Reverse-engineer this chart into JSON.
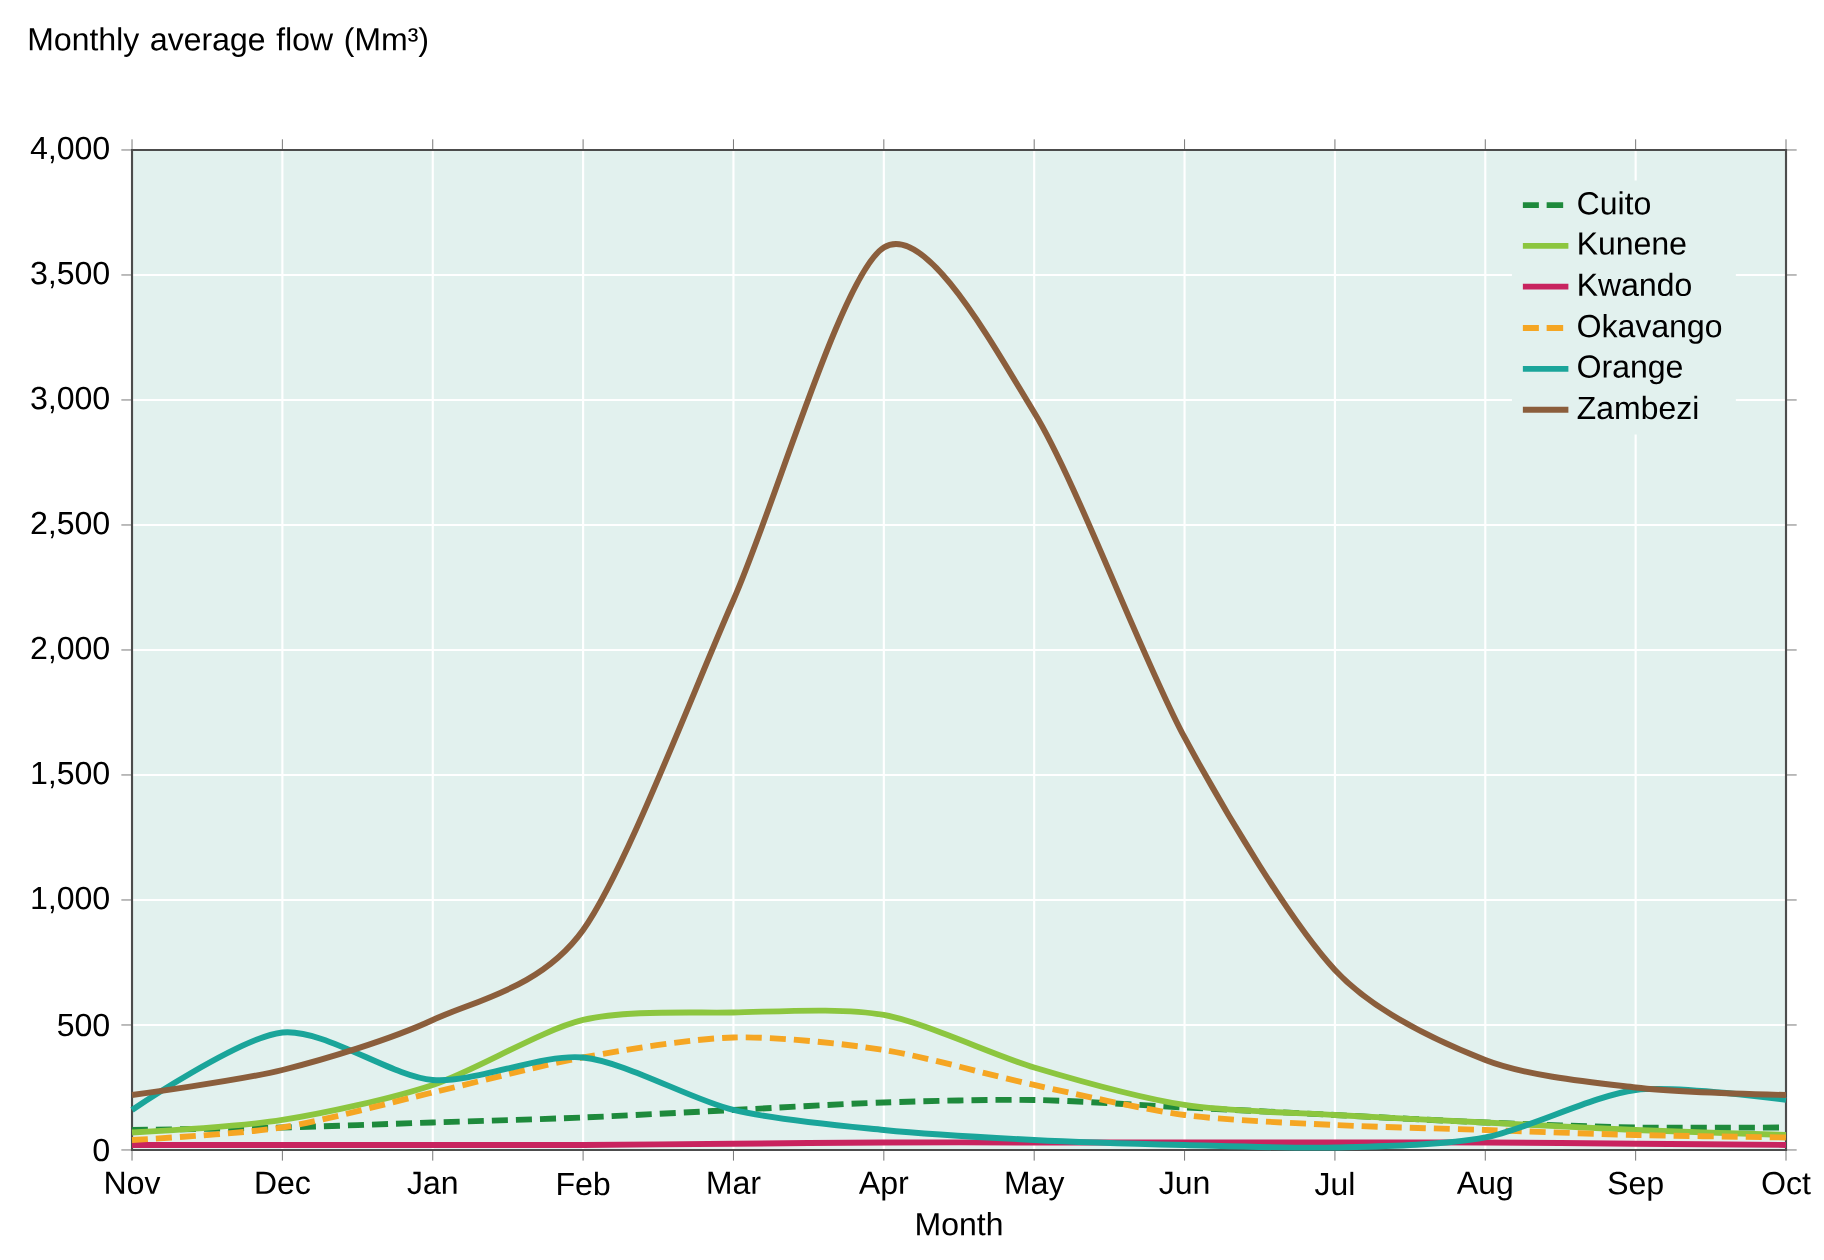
{
  "chart_data": {
    "type": "line",
    "ylabel": "Monthly average flow (Mm³)",
    "xlabel": "Month",
    "categories": [
      "Nov",
      "Dec",
      "Jan",
      "Feb",
      "Mar",
      "Apr",
      "May",
      "Jun",
      "Jul",
      "Aug",
      "Sep",
      "Oct"
    ],
    "series": [
      {
        "name": "Cuito",
        "color": "#1e8a3c",
        "line_style": "dashed",
        "values": [
          80,
          90,
          110,
          130,
          160,
          190,
          200,
          170,
          140,
          110,
          90,
          90
        ]
      },
      {
        "name": "Kunene",
        "color": "#8cc63f",
        "line_style": "solid",
        "values": [
          70,
          120,
          260,
          520,
          550,
          540,
          330,
          180,
          140,
          110,
          80,
          60
        ]
      },
      {
        "name": "Kwando",
        "color": "#c8245f",
        "line_style": "solid",
        "values": [
          20,
          20,
          20,
          20,
          25,
          30,
          30,
          30,
          30,
          30,
          25,
          20
        ]
      },
      {
        "name": "Okavango",
        "color": "#f5a623",
        "line_style": "dashed",
        "values": [
          40,
          90,
          230,
          370,
          450,
          400,
          260,
          140,
          100,
          80,
          60,
          50
        ]
      },
      {
        "name": "Orange",
        "color": "#1aa59a",
        "line_style": "solid",
        "values": [
          160,
          470,
          280,
          370,
          160,
          80,
          40,
          20,
          10,
          50,
          240,
          200
        ]
      },
      {
        "name": "Zambezi",
        "color": "#8b5e3c",
        "line_style": "solid",
        "values": [
          220,
          320,
          520,
          880,
          2200,
          3610,
          2950,
          1650,
          720,
          360,
          250,
          220
        ]
      }
    ],
    "ylim": [
      0,
      4000
    ],
    "yticks": [
      0,
      500,
      {
        "value": 1000,
        "label": "1,000"
      },
      {
        "value": 1500,
        "label": "1,500"
      },
      {
        "value": 2000,
        "label": "2,000"
      },
      {
        "value": 2500,
        "label": "2,500"
      },
      {
        "value": 3000,
        "label": "3,000"
      },
      {
        "value": 3500,
        "label": "3,500"
      },
      {
        "value": 4000,
        "label": "4,000"
      }
    ],
    "grid": true,
    "legend": "top right",
    "marker": "none"
  }
}
